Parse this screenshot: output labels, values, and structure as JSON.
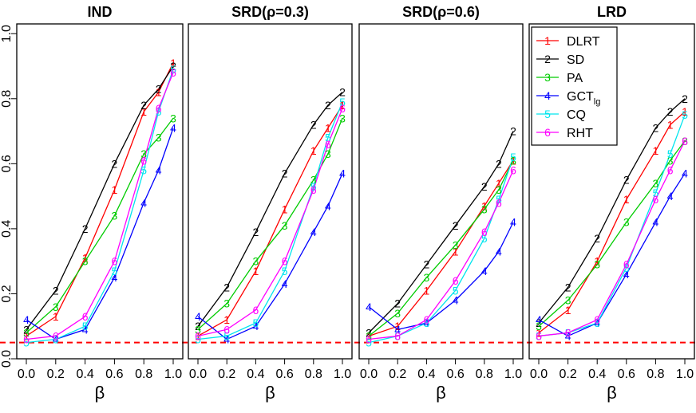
{
  "chart_data": [
    {
      "type": "line",
      "title": "IND",
      "xlabel": "β",
      "ylabel": "",
      "x": [
        0.0,
        0.2,
        0.4,
        0.6,
        0.8,
        0.9,
        1.0
      ],
      "ylim": [
        0,
        1.0
      ],
      "xlim": [
        0,
        1.0
      ],
      "grid": false,
      "series": [
        {
          "marker": "1",
          "color": "#ff0000",
          "values": [
            0.07,
            0.13,
            0.31,
            0.52,
            0.76,
            0.82,
            0.91
          ]
        },
        {
          "marker": "2",
          "color": "#000000",
          "values": [
            0.09,
            0.21,
            0.4,
            0.6,
            0.78,
            0.83,
            0.9
          ]
        },
        {
          "marker": "3",
          "color": "#00cc00",
          "values": [
            0.08,
            0.16,
            0.3,
            0.44,
            0.63,
            0.68,
            0.74
          ]
        },
        {
          "marker": "4",
          "color": "#0000ff",
          "values": [
            0.12,
            0.06,
            0.09,
            0.25,
            0.48,
            0.58,
            0.71
          ]
        },
        {
          "marker": "5",
          "color": "#00e5ee",
          "values": [
            0.05,
            0.06,
            0.1,
            0.27,
            0.58,
            0.76,
            0.89
          ]
        },
        {
          "marker": "6",
          "color": "#ff00ff",
          "values": [
            0.06,
            0.07,
            0.13,
            0.3,
            0.61,
            0.77,
            0.88
          ]
        }
      ]
    },
    {
      "type": "line",
      "title": "SRD(ρ=0.3)",
      "xlabel": "β",
      "ylabel": "",
      "x": [
        0.0,
        0.2,
        0.4,
        0.6,
        0.8,
        0.9,
        1.0
      ],
      "ylim": [
        0,
        1.0
      ],
      "xlim": [
        0,
        1.0
      ],
      "grid": false,
      "series": [
        {
          "marker": "1",
          "color": "#ff0000",
          "values": [
            0.07,
            0.12,
            0.27,
            0.46,
            0.64,
            0.71,
            0.78
          ]
        },
        {
          "marker": "2",
          "color": "#000000",
          "values": [
            0.1,
            0.22,
            0.39,
            0.57,
            0.72,
            0.78,
            0.82
          ]
        },
        {
          "marker": "3",
          "color": "#00cc00",
          "values": [
            0.09,
            0.17,
            0.3,
            0.41,
            0.55,
            0.63,
            0.74
          ]
        },
        {
          "marker": "4",
          "color": "#0000ff",
          "values": [
            0.13,
            0.06,
            0.1,
            0.23,
            0.39,
            0.47,
            0.57
          ]
        },
        {
          "marker": "5",
          "color": "#00e5ee",
          "values": [
            0.06,
            0.07,
            0.11,
            0.27,
            0.53,
            0.68,
            0.79
          ]
        },
        {
          "marker": "6",
          "color": "#ff00ff",
          "values": [
            0.07,
            0.09,
            0.15,
            0.3,
            0.52,
            0.66,
            0.77
          ]
        }
      ]
    },
    {
      "type": "line",
      "title": "SRD(ρ=0.6)",
      "xlabel": "β",
      "ylabel": "",
      "x": [
        0.0,
        0.2,
        0.4,
        0.6,
        0.8,
        0.9,
        1.0
      ],
      "ylim": [
        0,
        1.0
      ],
      "xlim": [
        0,
        1.0
      ],
      "grid": false,
      "series": [
        {
          "marker": "1",
          "color": "#ff0000",
          "values": [
            0.07,
            0.1,
            0.21,
            0.33,
            0.47,
            0.54,
            0.61
          ]
        },
        {
          "marker": "2",
          "color": "#000000",
          "values": [
            0.08,
            0.17,
            0.29,
            0.41,
            0.53,
            0.6,
            0.7
          ]
        },
        {
          "marker": "3",
          "color": "#00cc00",
          "values": [
            0.07,
            0.14,
            0.25,
            0.35,
            0.46,
            0.52,
            0.61
          ]
        },
        {
          "marker": "4",
          "color": "#0000ff",
          "values": [
            0.16,
            0.09,
            0.11,
            0.18,
            0.27,
            0.33,
            0.42
          ]
        },
        {
          "marker": "5",
          "color": "#00e5ee",
          "values": [
            0.05,
            0.07,
            0.11,
            0.21,
            0.37,
            0.49,
            0.62
          ]
        },
        {
          "marker": "6",
          "color": "#ff00ff",
          "values": [
            0.06,
            0.07,
            0.12,
            0.24,
            0.39,
            0.48,
            0.58
          ]
        }
      ]
    },
    {
      "type": "line",
      "title": "LRD",
      "xlabel": "β",
      "ylabel": "",
      "x": [
        0.0,
        0.2,
        0.4,
        0.6,
        0.8,
        0.9,
        1.0
      ],
      "ylim": [
        0,
        1.0
      ],
      "xlim": [
        0,
        1.0
      ],
      "grid": false,
      "series": [
        {
          "marker": "1",
          "color": "#ff0000",
          "values": [
            0.08,
            0.15,
            0.3,
            0.49,
            0.64,
            0.72,
            0.76
          ]
        },
        {
          "marker": "2",
          "color": "#000000",
          "values": [
            0.11,
            0.22,
            0.37,
            0.55,
            0.71,
            0.76,
            0.8
          ]
        },
        {
          "marker": "3",
          "color": "#00cc00",
          "values": [
            0.1,
            0.18,
            0.29,
            0.42,
            0.54,
            0.61,
            0.67
          ]
        },
        {
          "marker": "4",
          "color": "#0000ff",
          "values": [
            0.12,
            0.07,
            0.11,
            0.26,
            0.42,
            0.5,
            0.57
          ]
        },
        {
          "marker": "5",
          "color": "#00e5ee",
          "values": [
            0.07,
            0.08,
            0.11,
            0.28,
            0.51,
            0.63,
            0.75
          ]
        },
        {
          "marker": "6",
          "color": "#ff00ff",
          "values": [
            0.07,
            0.08,
            0.12,
            0.29,
            0.49,
            0.58,
            0.67
          ]
        }
      ]
    }
  ],
  "shared": {
    "yticks": [
      "0.0",
      "0.2",
      "0.4",
      "0.6",
      "0.8",
      "1.0"
    ],
    "ytick_values": [
      0.0,
      0.2,
      0.4,
      0.6,
      0.8,
      1.0
    ],
    "xticks": [
      "0.0",
      "0.2",
      "0.4",
      "0.6",
      "0.8",
      "1.0"
    ],
    "xtick_values": [
      0.0,
      0.2,
      0.4,
      0.6,
      0.8,
      1.0
    ],
    "reference_line": {
      "y": 0.05,
      "color": "#ff0000",
      "style": "dashed"
    }
  },
  "legend": {
    "placement": "inside top-left of last panel",
    "entries": [
      {
        "marker": "1",
        "label": "DLRT",
        "sub": "",
        "color": "#ff0000"
      },
      {
        "marker": "2",
        "label": "SD",
        "sub": "",
        "color": "#000000"
      },
      {
        "marker": "3",
        "label": "PA",
        "sub": "",
        "color": "#00cc00"
      },
      {
        "marker": "4",
        "label": "GCT",
        "sub": "lg",
        "color": "#0000ff"
      },
      {
        "marker": "5",
        "label": "CQ",
        "sub": "",
        "color": "#00e5ee"
      },
      {
        "marker": "6",
        "label": "RHT",
        "sub": "",
        "color": "#ff00ff"
      }
    ]
  }
}
